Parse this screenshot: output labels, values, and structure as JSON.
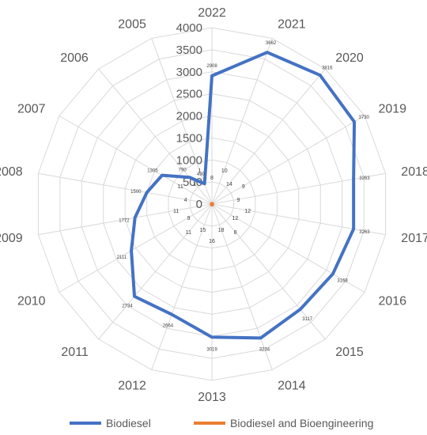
{
  "chart_data": {
    "type": "radar",
    "categories": [
      "2022",
      "2021",
      "2020",
      "2019",
      "2018",
      "2017",
      "2016",
      "2015",
      "2014",
      "2013",
      "2012",
      "2011",
      "2010",
      "2009",
      "2008",
      "2007",
      "2006",
      "2005"
    ],
    "rlim": [
      0,
      4000
    ],
    "rticks": [
      0,
      500,
      1000,
      1500,
      2000,
      2500,
      3000,
      3500,
      4000
    ],
    "rtick_labels": [
      "0",
      "500",
      "1000",
      "1500",
      "2000",
      "2500",
      "3000",
      "3500",
      "4000"
    ],
    "grid": true,
    "legend_position": "bottom",
    "series": [
      {
        "name": "Biodiesel",
        "color": "#4472c4",
        "values": [
          2908,
          3662,
          3816,
          3730,
          3263,
          3263,
          3168,
          3117,
          3234,
          3019,
          2664,
          2734,
          2111,
          1772,
          1500,
          1305,
          790,
          490
        ],
        "labels": [
          "2908",
          "3662",
          "3816",
          "3730",
          "3263",
          "3263",
          "3168",
          "3117",
          "3234",
          "3019",
          "2664",
          "2734",
          "2111",
          "1772",
          "1500",
          "1305",
          "790",
          "490"
        ]
      },
      {
        "name": "Biodiesel and Bioengineering",
        "color": "#ed7d31",
        "values": [
          8,
          10,
          14,
          9,
          9,
          12,
          12,
          8,
          18,
          16,
          15,
          11,
          9,
          11,
          4,
          11,
          1,
          1
        ],
        "labels": [
          "8",
          "10",
          "14",
          "9",
          "9",
          "12",
          "12",
          "8",
          "18",
          "16",
          "15",
          "11",
          "9",
          "11",
          "4",
          "11",
          "1",
          "1"
        ]
      }
    ]
  }
}
